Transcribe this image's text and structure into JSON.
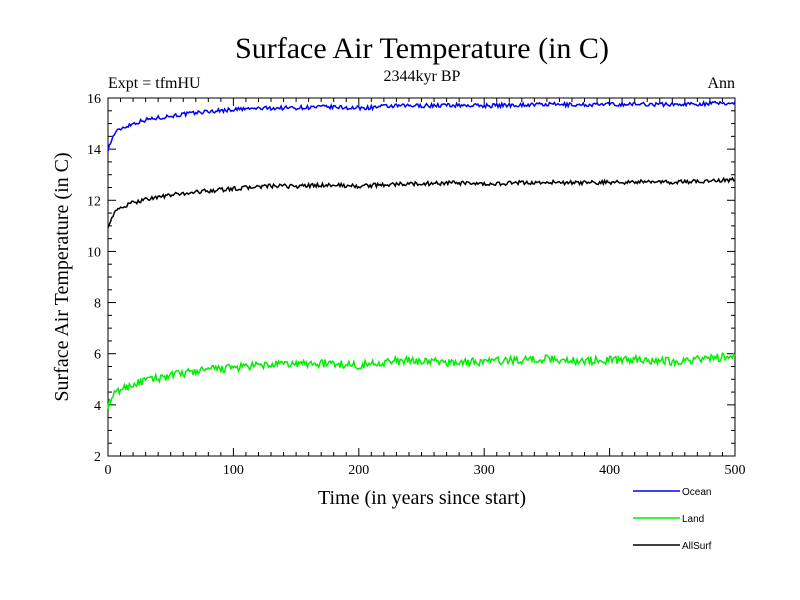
{
  "chart_data": {
    "type": "line",
    "title": "Surface Air Temperature (in C)",
    "subtitle_left": "Expt = tfmHU",
    "subtitle_center": "2344kyr BP",
    "subtitle_right": "Ann",
    "xlabel": "Time (in years since start)",
    "ylabel": "Surface Air Temperature (in C)",
    "xlim": [
      0,
      500
    ],
    "ylim": [
      2,
      16
    ],
    "xticks": [
      0,
      100,
      200,
      300,
      400,
      500
    ],
    "yticks": [
      2,
      4,
      6,
      8,
      10,
      12,
      14,
      16
    ],
    "grid": false,
    "legend_position": "bottom-right",
    "series": [
      {
        "name": "Ocean",
        "color": "#0000ff",
        "x": [
          0,
          5,
          10,
          20,
          30,
          50,
          75,
          100,
          125,
          150,
          175,
          200,
          225,
          250,
          275,
          300,
          325,
          350,
          375,
          400,
          425,
          450,
          475,
          500
        ],
        "values": [
          14.0,
          14.6,
          14.8,
          15.0,
          15.15,
          15.3,
          15.45,
          15.55,
          15.6,
          15.62,
          15.65,
          15.6,
          15.68,
          15.7,
          15.72,
          15.7,
          15.73,
          15.75,
          15.73,
          15.75,
          15.76,
          15.75,
          15.78,
          15.8
        ]
      },
      {
        "name": "Land",
        "color": "#00ee00",
        "x": [
          0,
          5,
          10,
          20,
          30,
          50,
          75,
          100,
          125,
          150,
          175,
          200,
          225,
          250,
          275,
          300,
          325,
          350,
          375,
          400,
          425,
          450,
          475,
          500
        ],
        "values": [
          4.0,
          4.4,
          4.6,
          4.8,
          4.95,
          5.15,
          5.35,
          5.45,
          5.55,
          5.6,
          5.62,
          5.55,
          5.7,
          5.72,
          5.65,
          5.7,
          5.75,
          5.8,
          5.72,
          5.75,
          5.78,
          5.7,
          5.8,
          5.9
        ]
      },
      {
        "name": "AllSurf",
        "color": "#000000",
        "x": [
          0,
          5,
          10,
          20,
          30,
          50,
          75,
          100,
          125,
          150,
          175,
          200,
          225,
          250,
          275,
          300,
          325,
          350,
          375,
          400,
          425,
          450,
          475,
          500
        ],
        "values": [
          11.0,
          11.5,
          11.7,
          11.9,
          12.05,
          12.2,
          12.35,
          12.45,
          12.55,
          12.55,
          12.6,
          12.55,
          12.62,
          12.65,
          12.68,
          12.62,
          12.68,
          12.7,
          12.68,
          12.7,
          12.72,
          12.7,
          12.75,
          12.8
        ]
      }
    ]
  }
}
